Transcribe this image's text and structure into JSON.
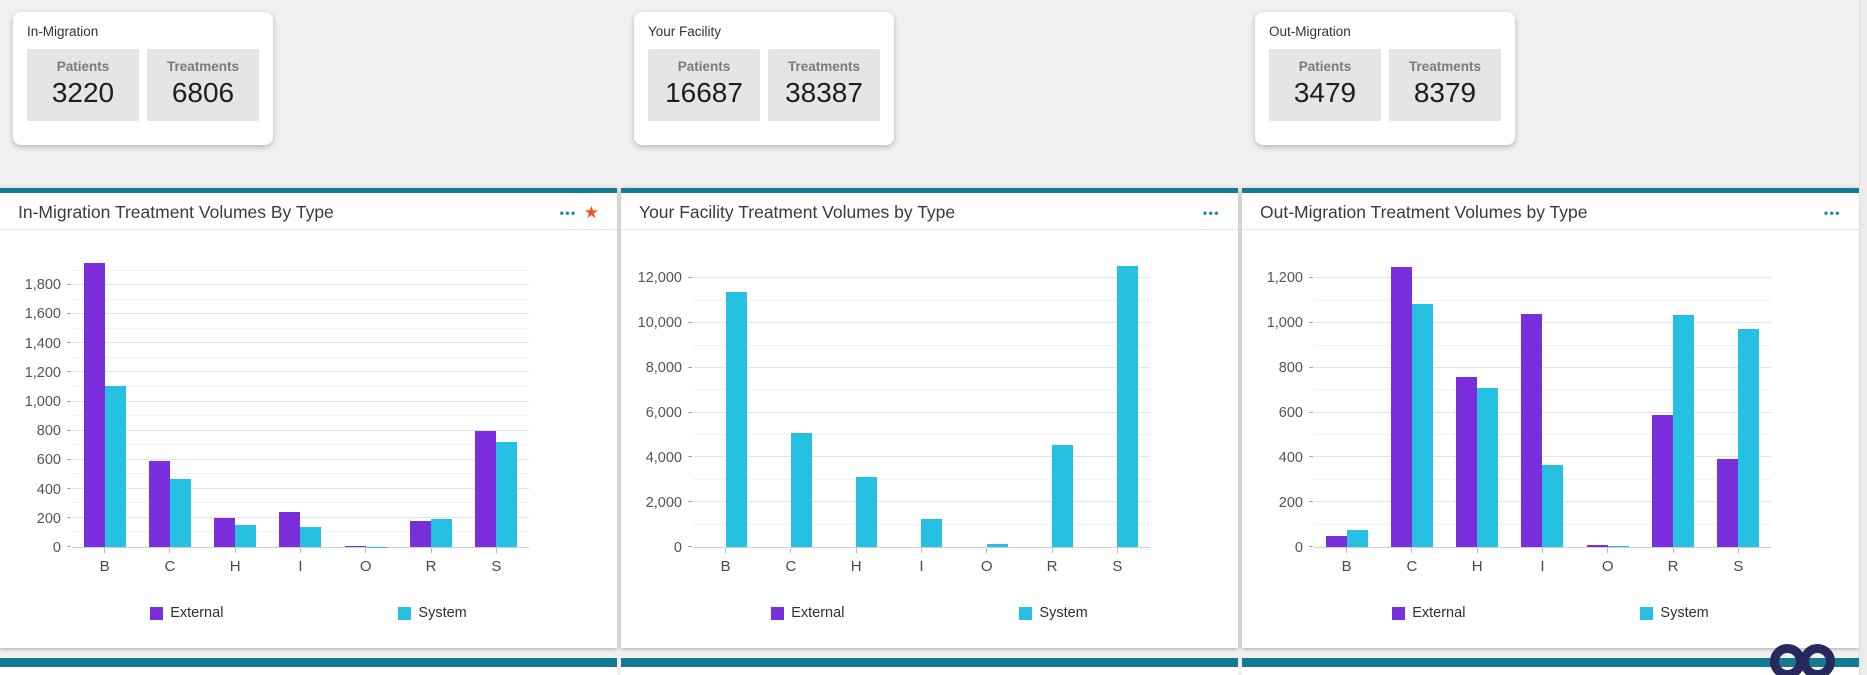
{
  "colors": {
    "external": "#7b2fdc",
    "system": "#25c0e2",
    "panel_accent": "#147a93",
    "star": "#f4511e",
    "menu_icon": "#2e7fa8"
  },
  "icons": {
    "menu": "•••",
    "favorite": "★"
  },
  "summary_cards": [
    {
      "title": "In-Migration",
      "stats": [
        {
          "label": "Patients",
          "value": "3220"
        },
        {
          "label": "Treatments",
          "value": "6806"
        }
      ]
    },
    {
      "title": "Your Facility",
      "stats": [
        {
          "label": "Patients",
          "value": "16687"
        },
        {
          "label": "Treatments",
          "value": "38387"
        }
      ]
    },
    {
      "title": "Out-Migration",
      "stats": [
        {
          "label": "Patients",
          "value": "3479"
        },
        {
          "label": "Treatments",
          "value": "8379"
        }
      ]
    }
  ],
  "chart_data": [
    {
      "type": "bar",
      "title": "In-Migration Treatment Volumes By Type",
      "categories": [
        "B",
        "C",
        "H",
        "I",
        "O",
        "R",
        "S"
      ],
      "series": [
        {
          "name": "External",
          "color": "#7b2fdc",
          "values": [
            1950,
            590,
            200,
            240,
            10,
            180,
            800
          ]
        },
        {
          "name": "System",
          "color": "#25c0e2",
          "values": [
            1110,
            470,
            150,
            135,
            3,
            190,
            725
          ]
        }
      ],
      "ylim": [
        0,
        2000
      ],
      "ytick_interval": 200,
      "grid": true,
      "legend_position": "bottom",
      "has_star": true
    },
    {
      "type": "bar",
      "title": "Your Facility Treatment Volumes by Type",
      "categories": [
        "B",
        "C",
        "H",
        "I",
        "O",
        "R",
        "S"
      ],
      "series": [
        {
          "name": "External",
          "color": "#7b2fdc",
          "values": [
            0,
            0,
            0,
            0,
            0,
            0,
            0
          ]
        },
        {
          "name": "System",
          "color": "#25c0e2",
          "values": [
            11400,
            5100,
            3150,
            1250,
            150,
            4550,
            12550
          ]
        }
      ],
      "ylim": [
        0,
        13000
      ],
      "ytick_interval": 2000,
      "grid": true,
      "legend_position": "bottom",
      "has_star": false
    },
    {
      "type": "bar",
      "title": "Out-Migration Treatment Volumes by Type",
      "categories": [
        "B",
        "C",
        "H",
        "I",
        "O",
        "R",
        "S"
      ],
      "series": [
        {
          "name": "External",
          "color": "#7b2fdc",
          "values": [
            50,
            1250,
            760,
            1040,
            10,
            590,
            395
          ]
        },
        {
          "name": "System",
          "color": "#25c0e2",
          "values": [
            75,
            1085,
            710,
            365,
            5,
            1035,
            975
          ]
        }
      ],
      "ylim": [
        0,
        1300
      ],
      "ytick_interval": 200,
      "grid": true,
      "legend_position": "bottom",
      "has_star": false
    }
  ]
}
